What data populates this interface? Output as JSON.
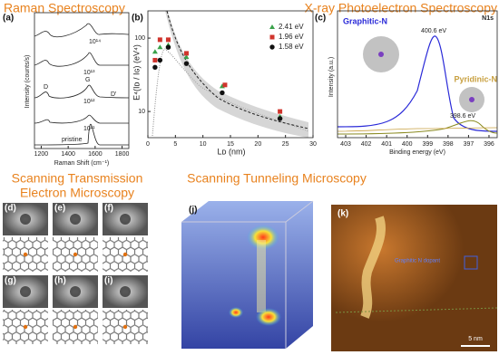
{
  "headings": {
    "raman": "Raman Spectroscopy",
    "xps": "X-ray Photoelectron Spectroscopy",
    "stem_1": "Scanning Transmission",
    "stem_2": "Electron Microscopy",
    "stm": "Scanning Tunneling Microscopy"
  },
  "panel_labels": {
    "a": "(a)",
    "b": "(b)",
    "c": "(c)",
    "d": "(d)",
    "e": "(e)",
    "f": "(f)",
    "g": "(g)",
    "h": "(h)",
    "i": "(i)",
    "j": "(j)",
    "k": "(k)"
  },
  "raman": {
    "ylabel": "Intensity (counts/s)",
    "xlabel": "Raman Shift (cm⁻¹)",
    "xlim": [
      1150,
      1850
    ],
    "xticks": [
      1200,
      1400,
      1600,
      1800
    ],
    "curve_labels": [
      "10¹⁴",
      "10¹³",
      "10¹²",
      "10¹¹",
      "pristine"
    ],
    "peaks": [
      "D",
      "G",
      "D'"
    ]
  },
  "chart_data": {
    "type": "scatter",
    "xlabel": "Lᴅ (nm)",
    "ylabel": "E⁴(Iᴅ / Iɢ) (eV⁴)",
    "log_y": true,
    "xlim": [
      0,
      30
    ],
    "xticks": [
      0,
      5,
      10,
      15,
      20,
      25,
      30
    ],
    "ylim": [
      4.4,
      235
    ],
    "yticks": [
      10,
      100
    ],
    "series": [
      {
        "name": "2.41 eV",
        "color": "#3aa24a",
        "marker": "triangle",
        "x": [
          1.3,
          2.2,
          3.7,
          7,
          13.5,
          24
        ],
        "values": [
          65,
          75,
          80,
          55,
          22,
          8.5
        ]
      },
      {
        "name": "1.96 eV",
        "color": "#d0342c",
        "marker": "square",
        "x": [
          1.3,
          2.2,
          3.7,
          7,
          14,
          24
        ],
        "values": [
          50,
          95,
          95,
          62,
          23,
          10
        ]
      },
      {
        "name": "1.58 eV",
        "color": "#111111",
        "marker": "circle",
        "x": [
          1.3,
          2.2,
          3.7,
          7,
          13.5,
          24
        ],
        "values": [
          40,
          50,
          75,
          45,
          18,
          8
        ]
      }
    ]
  },
  "xps": {
    "title": "N1s",
    "ylabel": "Intensity (a.u.)",
    "xlabel": "Binding energy (eV)",
    "xlim": [
      403.4,
      395.6
    ],
    "xticks": [
      403,
      402,
      401,
      400,
      399,
      398,
      397,
      396
    ],
    "graphitic": "Graphitic-N",
    "graphitic_peak": "400.6 eV",
    "pyridinic": "Pyridinic-N",
    "pyridinic_peak": "398.6 eV"
  },
  "stm": {
    "dopant": "Graphitic N dopant",
    "scale": "5 nm"
  }
}
